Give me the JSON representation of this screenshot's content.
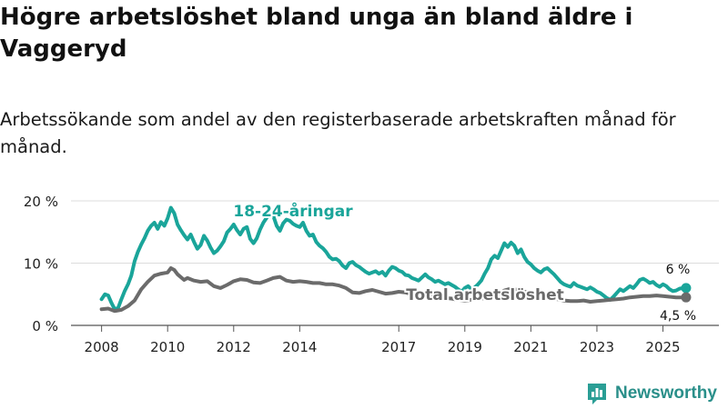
{
  "title": "Högre arbetslöshet bland unga än bland äldre i Vaggeryd",
  "subtitle": "Arbetssökande som andel av den registerbaserade arbetskraften månad för månad.",
  "brand": {
    "name": "Newsworthy",
    "icon": "bar-chart-logo-icon",
    "color": "#2a9e95"
  },
  "colors": {
    "youth": "#1aa59a",
    "total": "#6b6b6b",
    "grid": "#dcdcdc"
  },
  "chart_data": {
    "type": "line",
    "title": "Högre arbetslöshet bland unga än bland äldre i Vaggeryd",
    "xlabel": "",
    "ylabel": "",
    "xlim": [
      2007.9,
      2025.95
    ],
    "ylim": [
      0,
      20
    ],
    "grid": true,
    "y_ticks": [
      {
        "value": 0,
        "label": "0 %"
      },
      {
        "value": 10,
        "label": "10 %"
      },
      {
        "value": 20,
        "label": "20 %"
      }
    ],
    "x_ticks": [
      {
        "value": 2008,
        "label": "2008"
      },
      {
        "value": 2010,
        "label": "2010"
      },
      {
        "value": 2012,
        "label": "2012"
      },
      {
        "value": 2014,
        "label": "2014"
      },
      {
        "value": 2017,
        "label": "2017"
      },
      {
        "value": 2019,
        "label": "2019"
      },
      {
        "value": 2021,
        "label": "2021"
      },
      {
        "value": 2023,
        "label": "2023"
      },
      {
        "value": 2025,
        "label": "2025"
      }
    ],
    "series": [
      {
        "name": "18-24-åringar",
        "label": "18-24-åringar",
        "color": "#1aa59a",
        "end_label": "6 %",
        "end_value": 6,
        "points": [
          [
            2008.0,
            4.2
          ],
          [
            2008.1,
            5.0
          ],
          [
            2008.2,
            4.8
          ],
          [
            2008.3,
            3.6
          ],
          [
            2008.4,
            2.6
          ],
          [
            2008.5,
            2.8
          ],
          [
            2008.6,
            4.2
          ],
          [
            2008.7,
            5.5
          ],
          [
            2008.8,
            6.6
          ],
          [
            2008.9,
            8.0
          ],
          [
            2009.0,
            10.3
          ],
          [
            2009.1,
            11.8
          ],
          [
            2009.2,
            13.0
          ],
          [
            2009.3,
            14.0
          ],
          [
            2009.4,
            15.2
          ],
          [
            2009.5,
            16.0
          ],
          [
            2009.6,
            16.5
          ],
          [
            2009.7,
            15.5
          ],
          [
            2009.8,
            16.6
          ],
          [
            2009.9,
            16.0
          ],
          [
            2010.0,
            17.2
          ],
          [
            2010.1,
            18.9
          ],
          [
            2010.2,
            18.0
          ],
          [
            2010.3,
            16.2
          ],
          [
            2010.4,
            15.3
          ],
          [
            2010.5,
            14.5
          ],
          [
            2010.6,
            13.8
          ],
          [
            2010.7,
            14.6
          ],
          [
            2010.8,
            13.4
          ],
          [
            2010.9,
            12.3
          ],
          [
            2011.0,
            12.9
          ],
          [
            2011.1,
            14.4
          ],
          [
            2011.2,
            13.6
          ],
          [
            2011.3,
            12.5
          ],
          [
            2011.4,
            11.6
          ],
          [
            2011.5,
            12.0
          ],
          [
            2011.6,
            12.7
          ],
          [
            2011.7,
            13.5
          ],
          [
            2011.8,
            14.9
          ],
          [
            2011.9,
            15.5
          ],
          [
            2012.0,
            16.2
          ],
          [
            2012.1,
            15.3
          ],
          [
            2012.2,
            14.6
          ],
          [
            2012.3,
            15.5
          ],
          [
            2012.4,
            15.8
          ],
          [
            2012.5,
            13.9
          ],
          [
            2012.6,
            13.2
          ],
          [
            2012.7,
            14.0
          ],
          [
            2012.8,
            15.4
          ],
          [
            2012.9,
            16.5
          ],
          [
            2013.0,
            17.3
          ],
          [
            2013.1,
            18.0
          ],
          [
            2013.2,
            17.6
          ],
          [
            2013.3,
            16.0
          ],
          [
            2013.4,
            15.2
          ],
          [
            2013.5,
            16.4
          ],
          [
            2013.6,
            17.0
          ],
          [
            2013.7,
            16.8
          ],
          [
            2013.8,
            16.3
          ],
          [
            2013.9,
            16.0
          ],
          [
            2014.0,
            15.8
          ],
          [
            2014.1,
            16.5
          ],
          [
            2014.2,
            15.2
          ],
          [
            2014.3,
            14.4
          ],
          [
            2014.4,
            14.6
          ],
          [
            2014.5,
            13.4
          ],
          [
            2014.6,
            12.8
          ],
          [
            2014.7,
            12.4
          ],
          [
            2014.8,
            11.8
          ],
          [
            2014.9,
            11.0
          ],
          [
            2015.0,
            10.6
          ],
          [
            2015.1,
            10.7
          ],
          [
            2015.2,
            10.3
          ],
          [
            2015.3,
            9.6
          ],
          [
            2015.4,
            9.2
          ],
          [
            2015.5,
            10.0
          ],
          [
            2015.6,
            10.2
          ],
          [
            2015.7,
            9.7
          ],
          [
            2015.8,
            9.4
          ],
          [
            2015.9,
            9.0
          ],
          [
            2016.0,
            8.6
          ],
          [
            2016.1,
            8.3
          ],
          [
            2016.2,
            8.5
          ],
          [
            2016.3,
            8.7
          ],
          [
            2016.4,
            8.3
          ],
          [
            2016.5,
            8.6
          ],
          [
            2016.6,
            8.0
          ],
          [
            2016.7,
            8.8
          ],
          [
            2016.8,
            9.4
          ],
          [
            2016.9,
            9.2
          ],
          [
            2017.0,
            8.8
          ],
          [
            2017.1,
            8.6
          ],
          [
            2017.2,
            8.1
          ],
          [
            2017.3,
            8.0
          ],
          [
            2017.4,
            7.6
          ],
          [
            2017.5,
            7.4
          ],
          [
            2017.6,
            7.2
          ],
          [
            2017.7,
            7.7
          ],
          [
            2017.8,
            8.2
          ],
          [
            2017.9,
            7.7
          ],
          [
            2018.0,
            7.4
          ],
          [
            2018.1,
            7.0
          ],
          [
            2018.2,
            7.2
          ],
          [
            2018.3,
            6.9
          ],
          [
            2018.4,
            6.6
          ],
          [
            2018.5,
            6.8
          ],
          [
            2018.6,
            6.5
          ],
          [
            2018.7,
            6.2
          ],
          [
            2018.8,
            5.8
          ],
          [
            2018.9,
            5.4
          ],
          [
            2019.0,
            6.0
          ],
          [
            2019.1,
            6.3
          ],
          [
            2019.2,
            5.8
          ],
          [
            2019.3,
            6.1
          ],
          [
            2019.4,
            6.6
          ],
          [
            2019.5,
            7.2
          ],
          [
            2019.6,
            8.3
          ],
          [
            2019.7,
            9.2
          ],
          [
            2019.8,
            10.6
          ],
          [
            2019.9,
            11.2
          ],
          [
            2020.0,
            10.8
          ],
          [
            2020.1,
            12.0
          ],
          [
            2020.2,
            13.2
          ],
          [
            2020.3,
            12.6
          ],
          [
            2020.4,
            13.3
          ],
          [
            2020.5,
            12.8
          ],
          [
            2020.6,
            11.6
          ],
          [
            2020.7,
            12.2
          ],
          [
            2020.8,
            11.0
          ],
          [
            2020.9,
            10.2
          ],
          [
            2021.0,
            9.8
          ],
          [
            2021.1,
            9.2
          ],
          [
            2021.2,
            8.8
          ],
          [
            2021.3,
            8.5
          ],
          [
            2021.4,
            9.0
          ],
          [
            2021.5,
            9.2
          ],
          [
            2021.6,
            8.7
          ],
          [
            2021.7,
            8.2
          ],
          [
            2021.8,
            7.6
          ],
          [
            2021.9,
            7.0
          ],
          [
            2022.0,
            6.6
          ],
          [
            2022.1,
            6.4
          ],
          [
            2022.2,
            6.2
          ],
          [
            2022.3,
            6.8
          ],
          [
            2022.4,
            6.4
          ],
          [
            2022.5,
            6.2
          ],
          [
            2022.6,
            6.0
          ],
          [
            2022.7,
            5.8
          ],
          [
            2022.8,
            6.1
          ],
          [
            2022.9,
            5.8
          ],
          [
            2023.0,
            5.4
          ],
          [
            2023.1,
            5.2
          ],
          [
            2023.2,
            4.8
          ],
          [
            2023.3,
            4.4
          ],
          [
            2023.4,
            4.1
          ],
          [
            2023.5,
            4.6
          ],
          [
            2023.6,
            5.2
          ],
          [
            2023.7,
            5.8
          ],
          [
            2023.8,
            5.5
          ],
          [
            2023.9,
            5.9
          ],
          [
            2024.0,
            6.3
          ],
          [
            2024.1,
            6.0
          ],
          [
            2024.2,
            6.6
          ],
          [
            2024.3,
            7.3
          ],
          [
            2024.4,
            7.5
          ],
          [
            2024.5,
            7.2
          ],
          [
            2024.6,
            6.8
          ],
          [
            2024.7,
            7.0
          ],
          [
            2024.8,
            6.5
          ],
          [
            2024.9,
            6.2
          ],
          [
            2025.0,
            6.6
          ],
          [
            2025.1,
            6.3
          ],
          [
            2025.2,
            5.8
          ],
          [
            2025.3,
            5.5
          ],
          [
            2025.4,
            5.6
          ],
          [
            2025.5,
            5.9
          ],
          [
            2025.6,
            6.0
          ],
          [
            2025.7,
            6.0
          ]
        ]
      },
      {
        "name": "Total arbetslöshet",
        "label": "Total arbetslöshet",
        "color": "#6b6b6b",
        "end_label": "4,5 %",
        "end_value": 4.5,
        "points": [
          [
            2008.0,
            2.6
          ],
          [
            2008.2,
            2.7
          ],
          [
            2008.4,
            2.3
          ],
          [
            2008.6,
            2.5
          ],
          [
            2008.8,
            3.1
          ],
          [
            2009.0,
            4.0
          ],
          [
            2009.2,
            5.8
          ],
          [
            2009.4,
            7.0
          ],
          [
            2009.6,
            8.0
          ],
          [
            2009.8,
            8.3
          ],
          [
            2010.0,
            8.5
          ],
          [
            2010.1,
            9.2
          ],
          [
            2010.2,
            8.9
          ],
          [
            2010.3,
            8.2
          ],
          [
            2010.5,
            7.3
          ],
          [
            2010.6,
            7.6
          ],
          [
            2010.8,
            7.2
          ],
          [
            2011.0,
            7.0
          ],
          [
            2011.2,
            7.1
          ],
          [
            2011.4,
            6.3
          ],
          [
            2011.6,
            6.0
          ],
          [
            2011.8,
            6.5
          ],
          [
            2012.0,
            7.1
          ],
          [
            2012.2,
            7.4
          ],
          [
            2012.4,
            7.3
          ],
          [
            2012.6,
            6.9
          ],
          [
            2012.8,
            6.8
          ],
          [
            2013.0,
            7.2
          ],
          [
            2013.2,
            7.6
          ],
          [
            2013.4,
            7.8
          ],
          [
            2013.6,
            7.2
          ],
          [
            2013.8,
            7.0
          ],
          [
            2014.0,
            7.1
          ],
          [
            2014.2,
            7.0
          ],
          [
            2014.4,
            6.8
          ],
          [
            2014.6,
            6.8
          ],
          [
            2014.8,
            6.6
          ],
          [
            2015.0,
            6.6
          ],
          [
            2015.2,
            6.4
          ],
          [
            2015.4,
            6.0
          ],
          [
            2015.6,
            5.3
          ],
          [
            2015.8,
            5.2
          ],
          [
            2016.0,
            5.5
          ],
          [
            2016.2,
            5.7
          ],
          [
            2016.4,
            5.4
          ],
          [
            2016.6,
            5.1
          ],
          [
            2016.8,
            5.2
          ],
          [
            2017.0,
            5.4
          ],
          [
            2017.2,
            5.3
          ],
          [
            2017.4,
            5.0
          ],
          [
            2017.6,
            5.0
          ],
          [
            2017.8,
            4.8
          ],
          [
            2018.0,
            4.7
          ],
          [
            2018.2,
            4.5
          ],
          [
            2018.4,
            4.4
          ],
          [
            2018.6,
            4.3
          ],
          [
            2018.8,
            4.1
          ],
          [
            2019.0,
            4.0
          ],
          [
            2019.2,
            4.1
          ],
          [
            2019.4,
            4.2
          ],
          [
            2019.6,
            4.4
          ],
          [
            2019.8,
            4.8
          ],
          [
            2020.0,
            5.0
          ],
          [
            2020.2,
            5.6
          ],
          [
            2020.4,
            5.9
          ],
          [
            2020.6,
            5.7
          ],
          [
            2020.8,
            5.4
          ],
          [
            2021.0,
            5.2
          ],
          [
            2021.2,
            5.0
          ],
          [
            2021.4,
            4.8
          ],
          [
            2021.6,
            4.5
          ],
          [
            2021.8,
            4.2
          ],
          [
            2022.0,
            4.0
          ],
          [
            2022.2,
            3.9
          ],
          [
            2022.4,
            3.9
          ],
          [
            2022.6,
            4.0
          ],
          [
            2022.8,
            3.8
          ],
          [
            2023.0,
            3.9
          ],
          [
            2023.2,
            4.0
          ],
          [
            2023.4,
            4.1
          ],
          [
            2023.6,
            4.2
          ],
          [
            2023.8,
            4.3
          ],
          [
            2024.0,
            4.5
          ],
          [
            2024.2,
            4.6
          ],
          [
            2024.4,
            4.7
          ],
          [
            2024.6,
            4.7
          ],
          [
            2024.8,
            4.8
          ],
          [
            2025.0,
            4.7
          ],
          [
            2025.2,
            4.6
          ],
          [
            2025.4,
            4.5
          ],
          [
            2025.7,
            4.5
          ]
        ]
      }
    ]
  }
}
